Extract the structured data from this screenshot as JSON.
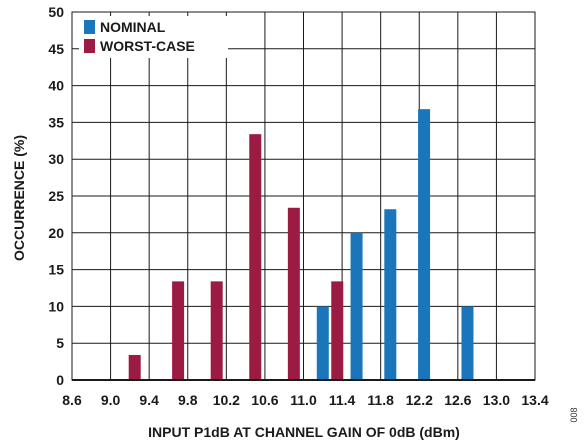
{
  "chart_data": {
    "type": "bar",
    "title": "",
    "xlabel": "INPUT P1dB AT CHANNEL GAIN OF 0dB (dBm)",
    "ylabel": "OCCURRENCE (%)",
    "xlim": [
      8.6,
      13.4
    ],
    "ylim": [
      0,
      50
    ],
    "x_ticks": [
      "8.6",
      "9.0",
      "9.4",
      "9.8",
      "10.2",
      "10.6",
      "11.0",
      "11.4",
      "11.8",
      "12.2",
      "12.6",
      "13.0",
      "13.4"
    ],
    "y_ticks": [
      "0",
      "5",
      "10",
      "15",
      "20",
      "25",
      "30",
      "35",
      "40",
      "45",
      "50"
    ],
    "grid": true,
    "legend_position": "top-left",
    "series": [
      {
        "name": "NOMINAL",
        "color": "#1b75bb",
        "points": [
          {
            "x": 11.2,
            "y": 10.0
          },
          {
            "x": 11.55,
            "y": 20.0
          },
          {
            "x": 11.9,
            "y": 23.2
          },
          {
            "x": 12.25,
            "y": 36.8
          },
          {
            "x": 12.7,
            "y": 10.0
          }
        ]
      },
      {
        "name": "WORST-CASE",
        "color": "#9b1b42",
        "points": [
          {
            "x": 9.25,
            "y": 3.4
          },
          {
            "x": 9.7,
            "y": 13.4
          },
          {
            "x": 10.1,
            "y": 13.4
          },
          {
            "x": 10.5,
            "y": 33.4
          },
          {
            "x": 10.9,
            "y": 23.4
          },
          {
            "x": 11.35,
            "y": 13.4
          }
        ]
      }
    ],
    "figure_id": "008"
  }
}
